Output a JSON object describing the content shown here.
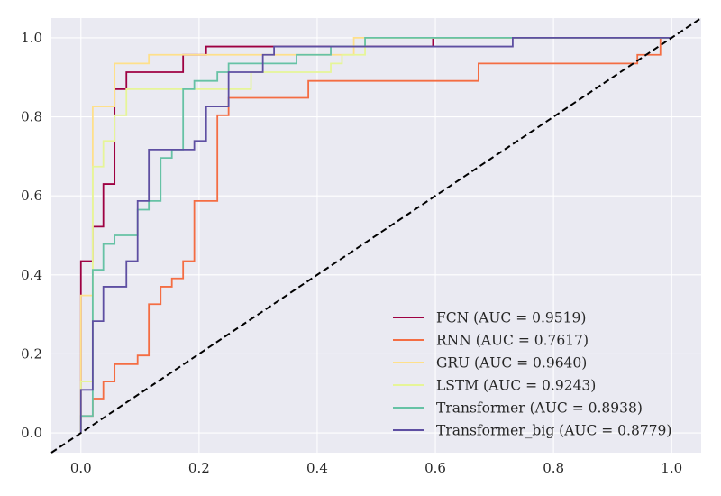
{
  "chart_data": {
    "type": "line",
    "title": "",
    "xlabel": "",
    "ylabel": "",
    "xlim": [
      -0.05,
      1.05
    ],
    "ylim": [
      -0.05,
      1.05
    ],
    "xticks": [
      "0.0",
      "0.2",
      "0.4",
      "0.6",
      "0.8",
      "1.0"
    ],
    "yticks": [
      "0.0",
      "0.2",
      "0.4",
      "0.6",
      "0.8",
      "1.0"
    ],
    "grid": true,
    "legend_position": "lower-right",
    "series": [
      {
        "name": "FCN (AUC = 0.9519)",
        "color": "#9e0142",
        "points": [
          [
            0,
            0
          ],
          [
            0,
            0.435
          ],
          [
            0.02,
            0.435
          ],
          [
            0.02,
            0.522
          ],
          [
            0.038,
            0.522
          ],
          [
            0.038,
            0.63
          ],
          [
            0.057,
            0.63
          ],
          [
            0.057,
            0.87
          ],
          [
            0.077,
            0.87
          ],
          [
            0.077,
            0.913
          ],
          [
            0.173,
            0.913
          ],
          [
            0.173,
            0.957
          ],
          [
            0.212,
            0.957
          ],
          [
            0.212,
            0.978
          ],
          [
            0.596,
            0.978
          ],
          [
            0.596,
            1.0
          ],
          [
            1.0,
            1.0
          ]
        ]
      },
      {
        "name": "RNN (AUC = 0.7617)",
        "color": "#f46d43",
        "points": [
          [
            0,
            0
          ],
          [
            0,
            0.043
          ],
          [
            0.02,
            0.043
          ],
          [
            0.02,
            0.087
          ],
          [
            0.038,
            0.087
          ],
          [
            0.038,
            0.13
          ],
          [
            0.057,
            0.13
          ],
          [
            0.057,
            0.174
          ],
          [
            0.096,
            0.174
          ],
          [
            0.096,
            0.196
          ],
          [
            0.115,
            0.196
          ],
          [
            0.115,
            0.326
          ],
          [
            0.135,
            0.326
          ],
          [
            0.135,
            0.37
          ],
          [
            0.154,
            0.37
          ],
          [
            0.154,
            0.391
          ],
          [
            0.173,
            0.391
          ],
          [
            0.173,
            0.435
          ],
          [
            0.192,
            0.435
          ],
          [
            0.192,
            0.587
          ],
          [
            0.231,
            0.587
          ],
          [
            0.231,
            0.804
          ],
          [
            0.25,
            0.804
          ],
          [
            0.25,
            0.848
          ],
          [
            0.385,
            0.848
          ],
          [
            0.385,
            0.891
          ],
          [
            0.673,
            0.891
          ],
          [
            0.673,
            0.935
          ],
          [
            0.942,
            0.935
          ],
          [
            0.942,
            0.957
          ],
          [
            0.981,
            0.957
          ],
          [
            0.981,
            1.0
          ],
          [
            1.0,
            1.0
          ]
        ]
      },
      {
        "name": "GRU (AUC = 0.9640)",
        "color": "#fee08b",
        "points": [
          [
            0,
            0
          ],
          [
            0,
            0.348
          ],
          [
            0.02,
            0.348
          ],
          [
            0.02,
            0.826
          ],
          [
            0.057,
            0.826
          ],
          [
            0.057,
            0.935
          ],
          [
            0.115,
            0.935
          ],
          [
            0.115,
            0.957
          ],
          [
            0.462,
            0.957
          ],
          [
            0.462,
            1.0
          ],
          [
            1.0,
            1.0
          ]
        ]
      },
      {
        "name": "LSTM (AUC = 0.9243)",
        "color": "#e6f598",
        "points": [
          [
            0,
            0
          ],
          [
            0,
            0.13
          ],
          [
            0.02,
            0.13
          ],
          [
            0.02,
            0.674
          ],
          [
            0.038,
            0.674
          ],
          [
            0.038,
            0.739
          ],
          [
            0.057,
            0.739
          ],
          [
            0.057,
            0.804
          ],
          [
            0.077,
            0.804
          ],
          [
            0.077,
            0.87
          ],
          [
            0.288,
            0.87
          ],
          [
            0.288,
            0.913
          ],
          [
            0.423,
            0.913
          ],
          [
            0.423,
            0.935
          ],
          [
            0.442,
            0.935
          ],
          [
            0.442,
            0.957
          ],
          [
            0.481,
            0.957
          ],
          [
            0.481,
            1.0
          ],
          [
            1.0,
            1.0
          ]
        ]
      },
      {
        "name": "Transformer (AUC = 0.8938)",
        "color": "#66c2a5",
        "points": [
          [
            0,
            0
          ],
          [
            0,
            0.043
          ],
          [
            0.02,
            0.043
          ],
          [
            0.02,
            0.413
          ],
          [
            0.038,
            0.413
          ],
          [
            0.038,
            0.478
          ],
          [
            0.057,
            0.478
          ],
          [
            0.057,
            0.5
          ],
          [
            0.096,
            0.5
          ],
          [
            0.096,
            0.565
          ],
          [
            0.115,
            0.565
          ],
          [
            0.115,
            0.587
          ],
          [
            0.135,
            0.587
          ],
          [
            0.135,
            0.696
          ],
          [
            0.154,
            0.696
          ],
          [
            0.154,
            0.717
          ],
          [
            0.173,
            0.717
          ],
          [
            0.173,
            0.87
          ],
          [
            0.192,
            0.87
          ],
          [
            0.192,
            0.891
          ],
          [
            0.231,
            0.891
          ],
          [
            0.231,
            0.913
          ],
          [
            0.25,
            0.913
          ],
          [
            0.25,
            0.935
          ],
          [
            0.365,
            0.935
          ],
          [
            0.365,
            0.957
          ],
          [
            0.423,
            0.957
          ],
          [
            0.423,
            0.978
          ],
          [
            0.481,
            0.978
          ],
          [
            0.481,
            1.0
          ],
          [
            1.0,
            1.0
          ]
        ]
      },
      {
        "name": "Transformer_big (AUC = 0.8779)",
        "color": "#5e4fa2",
        "points": [
          [
            0,
            0
          ],
          [
            0,
            0.109
          ],
          [
            0.02,
            0.109
          ],
          [
            0.02,
            0.283
          ],
          [
            0.038,
            0.283
          ],
          [
            0.038,
            0.37
          ],
          [
            0.077,
            0.37
          ],
          [
            0.077,
            0.435
          ],
          [
            0.096,
            0.435
          ],
          [
            0.096,
            0.587
          ],
          [
            0.115,
            0.587
          ],
          [
            0.115,
            0.717
          ],
          [
            0.192,
            0.717
          ],
          [
            0.192,
            0.739
          ],
          [
            0.212,
            0.739
          ],
          [
            0.212,
            0.826
          ],
          [
            0.25,
            0.826
          ],
          [
            0.25,
            0.913
          ],
          [
            0.308,
            0.913
          ],
          [
            0.308,
            0.957
          ],
          [
            0.327,
            0.957
          ],
          [
            0.327,
            0.978
          ],
          [
            0.731,
            0.978
          ],
          [
            0.731,
            1.0
          ],
          [
            1.0,
            1.0
          ]
        ]
      }
    ],
    "reference_line": {
      "style": "dashed",
      "color": "#000000",
      "points": [
        [
          -0.05,
          -0.05
        ],
        [
          1.05,
          1.05
        ]
      ]
    }
  }
}
